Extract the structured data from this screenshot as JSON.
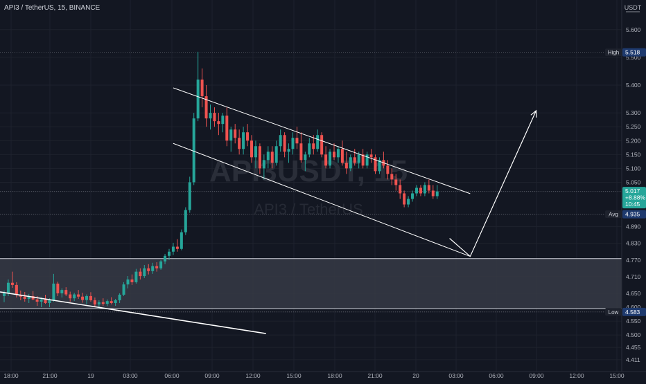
{
  "header": {
    "title": "API3 / TetherUS, 15, BINANCE",
    "currency_label": "USDT"
  },
  "watermark": {
    "symbol": "API3USDT, 15",
    "pair": "API3 / TetherUS"
  },
  "colors": {
    "background": "#131722",
    "up": "#26a69a",
    "down": "#ef5350",
    "grid": "#1e222d",
    "text": "#b2b5be",
    "zone": "#363a45",
    "drawing": "#ffffff",
    "label_bg": "#1e3a6e"
  },
  "chart_data": {
    "type": "candlestick",
    "symbol": "API3 / TetherUS",
    "interval": "15",
    "exchange": "BINANCE",
    "y_ticks": [
      "5.600",
      "5.500",
      "5.400",
      "5.300",
      "5.250",
      "5.200",
      "5.150",
      "5.100",
      "5.050",
      "5.017",
      "4.935",
      "4.890",
      "4.830",
      "4.770",
      "4.710",
      "4.650",
      "4.600",
      "4.583",
      "4.550",
      "4.500",
      "4.455",
      "4.411"
    ],
    "x_ticks": [
      "18:00",
      "21:00",
      "19",
      "03:00",
      "06:00",
      "09:00",
      "12:00",
      "15:00",
      "18:00",
      "21:00",
      "20",
      "03:00",
      "06:00",
      "09:00",
      "12:00",
      "15:00"
    ],
    "price_labels": {
      "high": {
        "label": "High",
        "value": "5.518"
      },
      "last": {
        "value": "5.017",
        "change": "+8.88%",
        "countdown": "10:45"
      },
      "avg": {
        "label": "Avg",
        "value": "4.935"
      },
      "low": {
        "label": "Low",
        "value": "4.583"
      }
    },
    "demand_zone": {
      "top": 4.775,
      "bottom": 4.595
    },
    "candles": [
      [
        4.64,
        4.66,
        4.618,
        4.65
      ],
      [
        4.65,
        4.7,
        4.64,
        4.688
      ],
      [
        4.688,
        4.728,
        4.67,
        4.68
      ],
      [
        4.68,
        4.69,
        4.635,
        4.645
      ],
      [
        4.645,
        4.66,
        4.625,
        4.638
      ],
      [
        4.638,
        4.655,
        4.62,
        4.63
      ],
      [
        4.63,
        4.648,
        4.615,
        4.64
      ],
      [
        4.64,
        4.658,
        4.625,
        4.628
      ],
      [
        4.628,
        4.64,
        4.605,
        4.62
      ],
      [
        4.62,
        4.635,
        4.6,
        4.628
      ],
      [
        4.628,
        4.645,
        4.612,
        4.615
      ],
      [
        4.615,
        4.632,
        4.6,
        4.625
      ],
      [
        4.625,
        4.72,
        4.62,
        4.685
      ],
      [
        4.685,
        4.692,
        4.64,
        4.65
      ],
      [
        4.65,
        4.668,
        4.635,
        4.662
      ],
      [
        4.662,
        4.672,
        4.64,
        4.646
      ],
      [
        4.646,
        4.656,
        4.62,
        4.632
      ],
      [
        4.632,
        4.652,
        4.622,
        4.646
      ],
      [
        4.646,
        4.662,
        4.63,
        4.638
      ],
      [
        4.638,
        4.652,
        4.616,
        4.626
      ],
      [
        4.626,
        4.646,
        4.61,
        4.64
      ],
      [
        4.64,
        4.654,
        4.62,
        4.625
      ],
      [
        4.625,
        4.635,
        4.6,
        4.61
      ],
      [
        4.61,
        4.625,
        4.598,
        4.618
      ],
      [
        4.618,
        4.632,
        4.605,
        4.612
      ],
      [
        4.612,
        4.628,
        4.604,
        4.622
      ],
      [
        4.622,
        4.636,
        4.61,
        4.615
      ],
      [
        4.615,
        4.63,
        4.605,
        4.625
      ],
      [
        4.625,
        4.65,
        4.615,
        4.645
      ],
      [
        4.645,
        4.69,
        4.64,
        4.682
      ],
      [
        4.682,
        4.712,
        4.668,
        4.7
      ],
      [
        4.7,
        4.718,
        4.68,
        4.69
      ],
      [
        4.69,
        4.738,
        4.685,
        4.728
      ],
      [
        4.728,
        4.74,
        4.7,
        4.712
      ],
      [
        4.712,
        4.752,
        4.705,
        4.74
      ],
      [
        4.74,
        4.755,
        4.718,
        4.73
      ],
      [
        4.73,
        4.76,
        4.72,
        4.748
      ],
      [
        4.748,
        4.762,
        4.728,
        4.74
      ],
      [
        4.74,
        4.77,
        4.735,
        4.765
      ],
      [
        4.765,
        4.792,
        4.755,
        4.785
      ],
      [
        4.785,
        4.81,
        4.77,
        4.8
      ],
      [
        4.8,
        4.832,
        4.788,
        4.818
      ],
      [
        4.818,
        4.845,
        4.8,
        4.81
      ],
      [
        4.81,
        4.88,
        4.805,
        4.87
      ],
      [
        4.87,
        4.96,
        4.86,
        4.95
      ],
      [
        4.95,
        5.07,
        4.94,
        5.05
      ],
      [
        5.05,
        5.3,
        5.04,
        5.28
      ],
      [
        5.28,
        5.52,
        5.27,
        5.42
      ],
      [
        5.42,
        5.46,
        5.32,
        5.36
      ],
      [
        5.36,
        5.4,
        5.25,
        5.28
      ],
      [
        5.28,
        5.33,
        5.24,
        5.3
      ],
      [
        5.3,
        5.32,
        5.25,
        5.27
      ],
      [
        5.27,
        5.3,
        5.22,
        5.26
      ],
      [
        5.26,
        5.3,
        5.23,
        5.29
      ],
      [
        5.29,
        5.32,
        5.18,
        5.2
      ],
      [
        5.2,
        5.25,
        5.16,
        5.24
      ],
      [
        5.24,
        5.26,
        5.19,
        5.21
      ],
      [
        5.21,
        5.24,
        5.15,
        5.17
      ],
      [
        5.17,
        5.25,
        5.15,
        5.23
      ],
      [
        5.23,
        5.26,
        5.18,
        5.2
      ],
      [
        5.2,
        5.22,
        5.12,
        5.14
      ],
      [
        5.14,
        5.2,
        5.1,
        5.18
      ],
      [
        5.18,
        5.19,
        5.08,
        5.1
      ],
      [
        5.1,
        5.15,
        5.06,
        5.13
      ],
      [
        5.13,
        5.18,
        5.1,
        5.16
      ],
      [
        5.16,
        5.18,
        5.1,
        5.12
      ],
      [
        5.12,
        5.2,
        5.11,
        5.18
      ],
      [
        5.18,
        5.24,
        5.16,
        5.22
      ],
      [
        5.22,
        5.23,
        5.14,
        5.16
      ],
      [
        5.16,
        5.19,
        5.12,
        5.17
      ],
      [
        5.17,
        5.23,
        5.15,
        5.21
      ],
      [
        5.21,
        5.25,
        5.17,
        5.19
      ],
      [
        5.19,
        5.23,
        5.12,
        5.13
      ],
      [
        5.13,
        5.16,
        5.09,
        5.15
      ],
      [
        5.15,
        5.21,
        5.14,
        5.19
      ],
      [
        5.19,
        5.22,
        5.15,
        5.17
      ],
      [
        5.17,
        5.24,
        5.16,
        5.22
      ],
      [
        5.22,
        5.23,
        5.14,
        5.15
      ],
      [
        5.15,
        5.18,
        5.1,
        5.11
      ],
      [
        5.11,
        5.17,
        5.1,
        5.16
      ],
      [
        5.16,
        5.19,
        5.13,
        5.14
      ],
      [
        5.14,
        5.18,
        5.12,
        5.17
      ],
      [
        5.17,
        5.2,
        5.11,
        5.12
      ],
      [
        5.12,
        5.16,
        5.08,
        5.1
      ],
      [
        5.1,
        5.15,
        5.09,
        5.14
      ],
      [
        5.14,
        5.17,
        5.11,
        5.12
      ],
      [
        5.12,
        5.16,
        5.1,
        5.15
      ],
      [
        5.15,
        5.17,
        5.1,
        5.11
      ],
      [
        5.11,
        5.16,
        5.1,
        5.15
      ],
      [
        5.15,
        5.17,
        5.12,
        5.14
      ],
      [
        5.14,
        5.15,
        5.08,
        5.09
      ],
      [
        5.09,
        5.14,
        5.08,
        5.13
      ],
      [
        5.13,
        5.16,
        5.1,
        5.11
      ],
      [
        5.11,
        5.13,
        5.06,
        5.08
      ],
      [
        5.08,
        5.1,
        5.04,
        5.06
      ],
      [
        5.06,
        5.08,
        5.02,
        5.04
      ],
      [
        5.04,
        5.06,
        4.99,
        5.01
      ],
      [
        5.01,
        5.02,
        4.96,
        4.97
      ],
      [
        4.97,
        5.0,
        4.96,
        4.99
      ],
      [
        4.99,
        5.02,
        4.98,
        5.01
      ],
      [
        5.01,
        5.04,
        5.0,
        5.03
      ],
      [
        5.03,
        5.04,
        5.0,
        5.01
      ],
      [
        5.01,
        5.05,
        5.0,
        5.04
      ],
      [
        5.04,
        5.06,
        5.01,
        5.02
      ],
      [
        5.02,
        5.04,
        4.99,
        5.0
      ],
      [
        5.0,
        5.04,
        4.99,
        5.017
      ]
    ],
    "drawings": {
      "channel_upper": [
        [
          5.39,
          4.955
        ],
        [
          4.961,
          5.009
        ]
      ],
      "channel_lower": [
        [
          5.19,
          4.955
        ],
        [
          4.783,
          4.845
        ]
      ],
      "projection_arrow": [
        [
          4.848,
          4.75
        ],
        [
          4.783,
          4.83
        ],
        [
          5.308,
          5.125
        ]
      ],
      "trendline": [
        [
          4.655,
          4.505
        ],
        [
          4.0,
          4.4
        ]
      ]
    }
  }
}
